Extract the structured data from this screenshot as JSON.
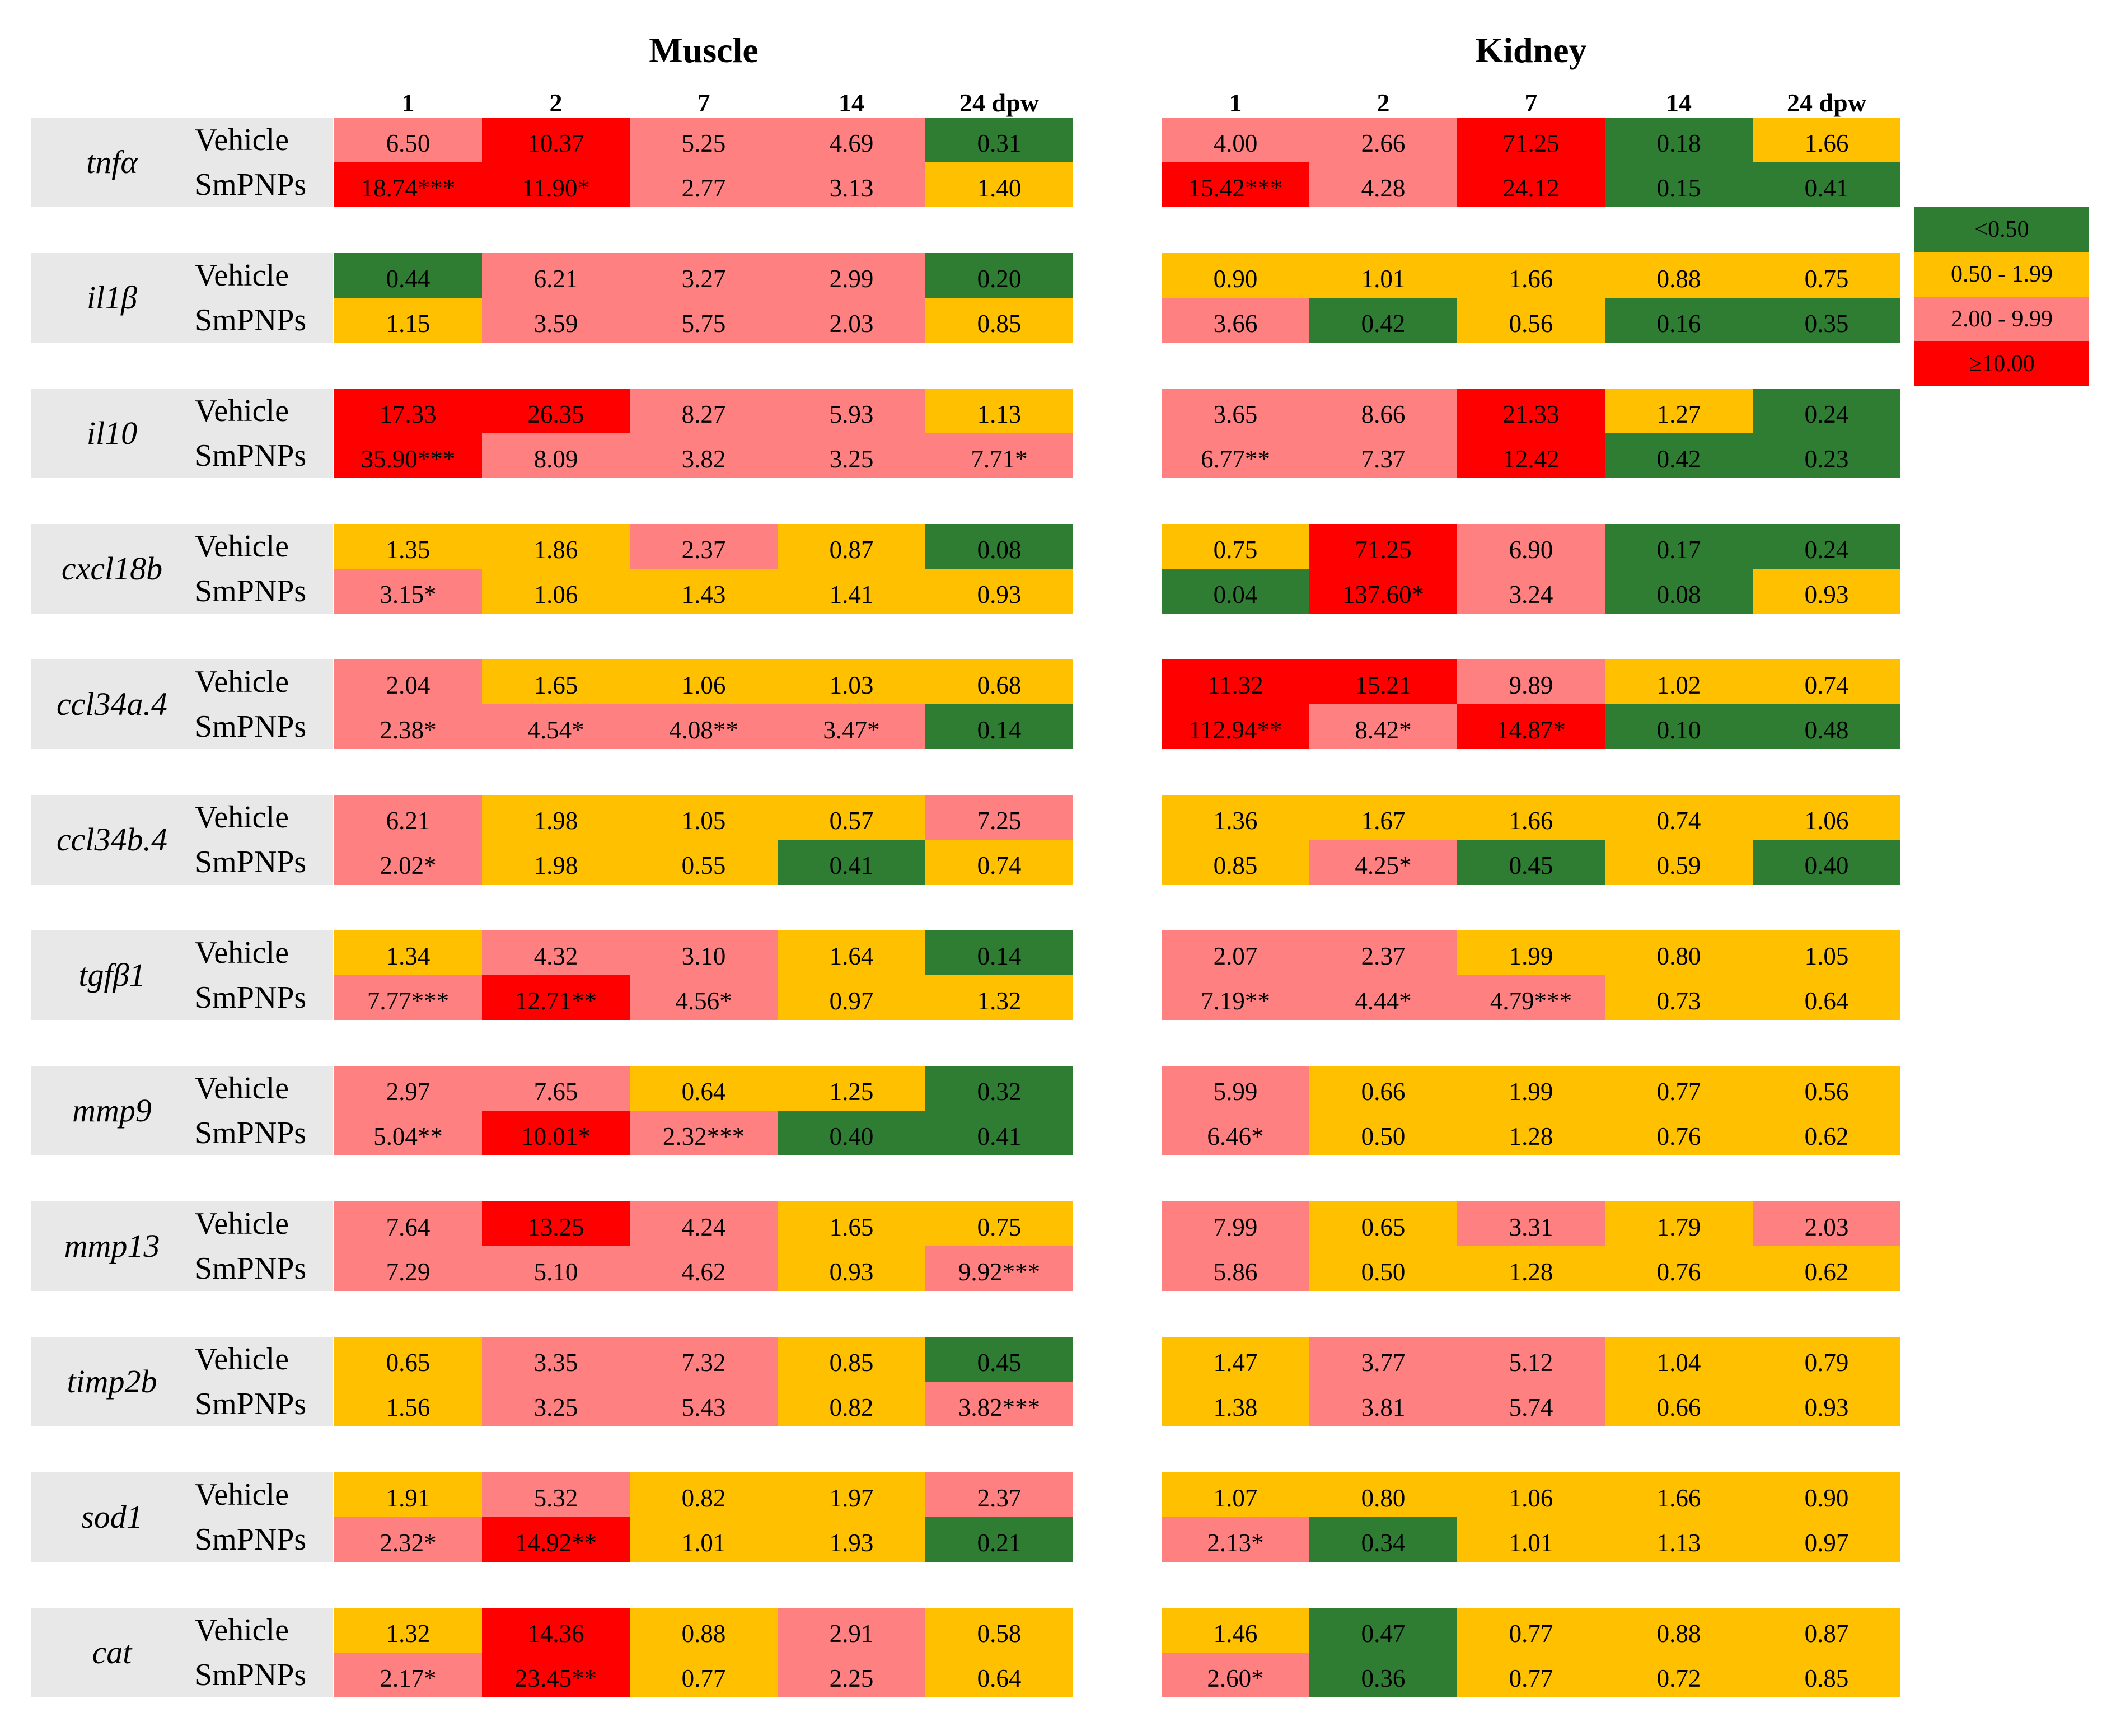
{
  "chart_data": {
    "type": "heatmap",
    "tissues": [
      "Muscle",
      "Kidney"
    ],
    "timepoints": [
      "1",
      "2",
      "7",
      "14",
      "24 dpw"
    ],
    "groups": [
      "Vehicle",
      "SmPNPs"
    ],
    "genes": [
      "tnfα",
      "il1β",
      "il10",
      "cxcl18b",
      "ccl34a.4",
      "ccl34b.4",
      "tgfβ1",
      "mmp9",
      "mmp13",
      "timp2b",
      "sod1",
      "cat"
    ],
    "muscle": [
      {
        "vehicle": [
          "6.50",
          "10.37",
          "5.25",
          "4.69",
          "0.31"
        ],
        "smpnps": [
          "18.74***",
          "11.90*",
          "2.77",
          "3.13",
          "1.40"
        ]
      },
      {
        "vehicle": [
          "0.44",
          "6.21",
          "3.27",
          "2.99",
          "0.20"
        ],
        "smpnps": [
          "1.15",
          "3.59",
          "5.75",
          "2.03",
          "0.85"
        ]
      },
      {
        "vehicle": [
          "17.33",
          "26.35",
          "8.27",
          "5.93",
          "1.13"
        ],
        "smpnps": [
          "35.90***",
          "8.09",
          "3.82",
          "3.25",
          "7.71*"
        ]
      },
      {
        "vehicle": [
          "1.35",
          "1.86",
          "2.37",
          "0.87",
          "0.08"
        ],
        "smpnps": [
          "3.15*",
          "1.06",
          "1.43",
          "1.41",
          "0.93"
        ]
      },
      {
        "vehicle": [
          "2.04",
          "1.65",
          "1.06",
          "1.03",
          "0.68"
        ],
        "smpnps": [
          "2.38*",
          "4.54*",
          "4.08**",
          "3.47*",
          "0.14"
        ]
      },
      {
        "vehicle": [
          "6.21",
          "1.98",
          "1.05",
          "0.57",
          "7.25"
        ],
        "smpnps": [
          "2.02*",
          "1.98",
          "0.55",
          "0.41",
          "0.74"
        ]
      },
      {
        "vehicle": [
          "1.34",
          "4.32",
          "3.10",
          "1.64",
          "0.14"
        ],
        "smpnps": [
          "7.77***",
          "12.71**",
          "4.56*",
          "0.97",
          "1.32"
        ]
      },
      {
        "vehicle": [
          "2.97",
          "7.65",
          "0.64",
          "1.25",
          "0.32"
        ],
        "smpnps": [
          "5.04**",
          "10.01*",
          "2.32***",
          "0.40",
          "0.41"
        ]
      },
      {
        "vehicle": [
          "7.64",
          "13.25",
          "4.24",
          "1.65",
          "0.75"
        ],
        "smpnps": [
          "7.29",
          "5.10",
          "4.62",
          "0.93",
          "9.92***"
        ]
      },
      {
        "vehicle": [
          "0.65",
          "3.35",
          "7.32",
          "0.85",
          "0.45"
        ],
        "smpnps": [
          "1.56",
          "3.25",
          "5.43",
          "0.82",
          "3.82***"
        ]
      },
      {
        "vehicle": [
          "1.91",
          "5.32",
          "0.82",
          "1.97",
          "2.37"
        ],
        "smpnps": [
          "2.32*",
          "14.92**",
          "1.01",
          "1.93",
          "0.21"
        ]
      },
      {
        "vehicle": [
          "1.32",
          "14.36",
          "0.88",
          "2.91",
          "0.58"
        ],
        "smpnps": [
          "2.17*",
          "23.45**",
          "0.77",
          "2.25",
          "0.64"
        ]
      }
    ],
    "kidney": [
      {
        "vehicle": [
          "4.00",
          "2.66",
          "71.25",
          "0.18",
          "1.66"
        ],
        "smpnps": [
          "15.42***",
          "4.28",
          "24.12",
          "0.15",
          "0.41"
        ]
      },
      {
        "vehicle": [
          "0.90",
          "1.01",
          "1.66",
          "0.88",
          "0.75"
        ],
        "smpnps": [
          "3.66",
          "0.42",
          "0.56",
          "0.16",
          "0.35"
        ]
      },
      {
        "vehicle": [
          "3.65",
          "8.66",
          "21.33",
          "1.27",
          "0.24"
        ],
        "smpnps": [
          "6.77**",
          "7.37",
          "12.42",
          "0.42",
          "0.23"
        ]
      },
      {
        "vehicle": [
          "0.75",
          "71.25",
          "6.90",
          "0.17",
          "0.24"
        ],
        "smpnps": [
          "0.04",
          "137.60*",
          "3.24",
          "0.08",
          "0.93"
        ]
      },
      {
        "vehicle": [
          "11.32",
          "15.21",
          "9.89",
          "1.02",
          "0.74"
        ],
        "smpnps": [
          "112.94**",
          "8.42*",
          "14.87*",
          "0.10",
          "0.48"
        ]
      },
      {
        "vehicle": [
          "1.36",
          "1.67",
          "1.66",
          "0.74",
          "1.06"
        ],
        "smpnps": [
          "0.85",
          "4.25*",
          "0.45",
          "0.59",
          "0.40"
        ]
      },
      {
        "vehicle": [
          "2.07",
          "2.37",
          "1.99",
          "0.80",
          "1.05"
        ],
        "smpnps": [
          "7.19**",
          "4.44*",
          "4.79***",
          "0.73",
          "0.64"
        ]
      },
      {
        "vehicle": [
          "5.99",
          "0.66",
          "1.99",
          "0.77",
          "0.56"
        ],
        "smpnps": [
          "6.46*",
          "0.50",
          "1.28",
          "0.76",
          "0.62"
        ]
      },
      {
        "vehicle": [
          "7.99",
          "0.65",
          "3.31",
          "1.79",
          "2.03"
        ],
        "smpnps": [
          "5.86",
          "0.50",
          "1.28",
          "0.76",
          "0.62"
        ]
      },
      {
        "vehicle": [
          "1.47",
          "3.77",
          "5.12",
          "1.04",
          "0.79"
        ],
        "smpnps": [
          "1.38",
          "3.81",
          "5.74",
          "0.66",
          "0.93"
        ]
      },
      {
        "vehicle": [
          "1.07",
          "0.80",
          "1.06",
          "1.66",
          "0.90"
        ],
        "smpnps": [
          "2.13*",
          "0.34",
          "1.01",
          "1.13",
          "0.97"
        ]
      },
      {
        "vehicle": [
          "1.46",
          "0.47",
          "0.77",
          "0.88",
          "0.87"
        ],
        "smpnps": [
          "2.60*",
          "0.36",
          "0.77",
          "0.72",
          "0.85"
        ]
      }
    ],
    "legend": [
      {
        "label": "<0.50",
        "color": "#2e7d32"
      },
      {
        "label": "0.50 - 1.99",
        "color": "#ffc000"
      },
      {
        "label": "2.00 - 9.99",
        "color": "#ff8080"
      },
      {
        "label": "≥10.00",
        "color": "#ff0000"
      }
    ]
  }
}
